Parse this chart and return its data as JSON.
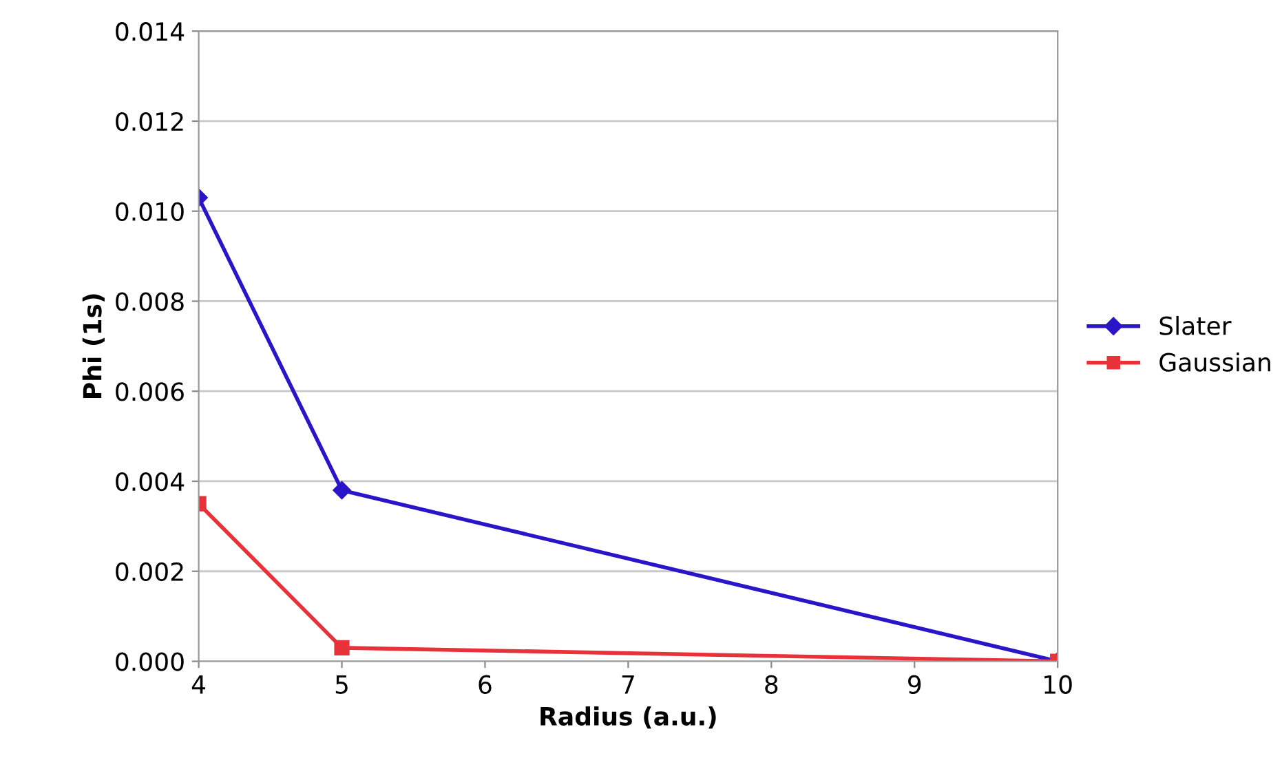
{
  "chart_data": {
    "type": "line",
    "xlabel": "Radius (a.u.)",
    "ylabel": "Phi (1s)",
    "x": [
      4,
      5,
      10
    ],
    "series": [
      {
        "name": "Slater",
        "color": "#2a16c8",
        "marker": "diamond",
        "values": [
          0.0103,
          0.0038,
          0.0
        ]
      },
      {
        "name": "Gaussian",
        "color": "#e8323a",
        "marker": "square",
        "values": [
          0.0035,
          0.0003,
          0.0
        ]
      }
    ],
    "xlim": [
      4,
      10
    ],
    "xticks": [
      4,
      5,
      6,
      7,
      8,
      9,
      10
    ],
    "ylim": [
      0,
      0.014
    ],
    "yticks": [
      {
        "value": 0,
        "label": "0.000"
      },
      {
        "value": 0.002,
        "label": "0.002"
      },
      {
        "value": 0.004,
        "label": "0.004"
      },
      {
        "value": 0.006,
        "label": "0.006"
      },
      {
        "value": 0.008,
        "label": "0.008"
      },
      {
        "value": 0.01,
        "label": "0.010"
      },
      {
        "value": 0.012,
        "label": "0.012"
      },
      {
        "value": 0.014,
        "label": "0.014"
      }
    ],
    "grid": "y",
    "legend": "right",
    "line_style": "solid"
  }
}
